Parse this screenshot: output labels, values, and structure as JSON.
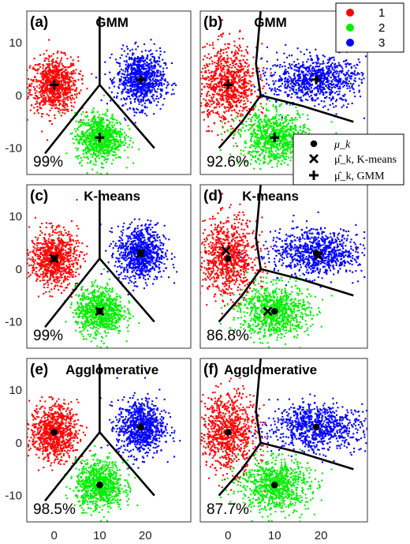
{
  "chart_data": {
    "type": "scatter",
    "xlim": [
      -6,
      30
    ],
    "ylim": [
      -15,
      16
    ],
    "xticks": [
      "0",
      "10",
      "20"
    ],
    "yticks": [
      "10",
      "0",
      "-10"
    ],
    "class_legend": [
      {
        "name": "1",
        "color": "#ff0000"
      },
      {
        "name": "2",
        "color": "#00ee00"
      },
      {
        "name": "3",
        "color": "#0000ff"
      }
    ],
    "marker_legend": [
      {
        "symbol": "●",
        "label": "μ_k"
      },
      {
        "symbol": "✖",
        "label": "μ̂_k, K-means"
      },
      {
        "symbol": "✚",
        "label": "μ̂_k, GMM"
      }
    ],
    "panels": [
      {
        "label": "(a)",
        "title": "GMM",
        "accuracy": "99%",
        "clusters": [
          {
            "cx": 0,
            "cy": 2,
            "sx": 4.2,
            "sy": 4.2
          },
          {
            "cx": 10,
            "cy": -8,
            "sx": 4.2,
            "sy": 3.6
          },
          {
            "cx": 19,
            "cy": 3,
            "sx": 4.2,
            "sy": 4.2
          }
        ],
        "true_means": [],
        "kmeans_means": [],
        "gmm_means": [
          [
            0,
            2
          ],
          [
            10,
            -8
          ],
          [
            19,
            3
          ]
        ],
        "boundaries": [
          [
            [
              10,
              15
            ],
            [
              10,
              2
            ]
          ],
          [
            [
              10,
              2
            ],
            [
              -2,
              -11
            ]
          ],
          [
            [
              10,
              2
            ],
            [
              22,
              -10
            ]
          ]
        ]
      },
      {
        "label": "(b)",
        "title": "GMM",
        "accuracy": "92.6%",
        "clusters": [
          {
            "cx": 0,
            "cy": 2,
            "sx": 5,
            "sy": 6
          },
          {
            "cx": 10,
            "cy": -8,
            "sx": 6,
            "sy": 4
          },
          {
            "cx": 19,
            "cy": 3,
            "sx": 7,
            "sy": 3.5
          }
        ],
        "true_means": [],
        "kmeans_means": [],
        "gmm_means": [
          [
            0,
            2
          ],
          [
            10,
            -8
          ],
          [
            19,
            3
          ]
        ],
        "boundaries": [
          [
            [
              7,
              16
            ],
            [
              6,
              6
            ],
            [
              7,
              0
            ]
          ],
          [
            [
              7,
              0
            ],
            [
              3,
              -5
            ],
            [
              -2,
              -10
            ]
          ],
          [
            [
              7,
              0
            ],
            [
              16,
              -2
            ],
            [
              27,
              -5
            ]
          ]
        ]
      },
      {
        "label": "(c)",
        "title": "K-means",
        "accuracy": "99%",
        "clusters": [
          {
            "cx": 0,
            "cy": 2,
            "sx": 4.2,
            "sy": 4.2
          },
          {
            "cx": 10,
            "cy": -8,
            "sx": 4.2,
            "sy": 3.6
          },
          {
            "cx": 19,
            "cy": 3,
            "sx": 4.2,
            "sy": 4.2
          }
        ],
        "true_means": [
          [
            0,
            2
          ],
          [
            10,
            -8
          ],
          [
            19,
            3
          ]
        ],
        "kmeans_means": [
          [
            0,
            2
          ],
          [
            10,
            -8
          ],
          [
            19,
            3
          ]
        ],
        "gmm_means": [],
        "boundaries": [
          [
            [
              10,
              15
            ],
            [
              10,
              2
            ]
          ],
          [
            [
              10,
              2
            ],
            [
              -2,
              -11
            ]
          ],
          [
            [
              10,
              2
            ],
            [
              22,
              -10
            ]
          ]
        ]
      },
      {
        "label": "(d)",
        "title": "K-means",
        "accuracy": "86.8%",
        "clusters": [
          {
            "cx": 0,
            "cy": 2,
            "sx": 5,
            "sy": 6
          },
          {
            "cx": 10,
            "cy": -8,
            "sx": 6,
            "sy": 4
          },
          {
            "cx": 19,
            "cy": 3,
            "sx": 7,
            "sy": 3.5
          }
        ],
        "true_means": [
          [
            0,
            2
          ],
          [
            10,
            -8
          ],
          [
            19,
            3
          ]
        ],
        "kmeans_means": [
          [
            -0.5,
            3.5
          ],
          [
            8.5,
            -8
          ],
          [
            19.5,
            2.5
          ]
        ],
        "gmm_means": [],
        "boundaries": [
          [
            [
              7,
              16
            ],
            [
              6,
              6
            ],
            [
              7,
              0
            ]
          ],
          [
            [
              7,
              0
            ],
            [
              3,
              -5
            ],
            [
              -2,
              -10
            ]
          ],
          [
            [
              7,
              0
            ],
            [
              16,
              -2
            ],
            [
              27,
              -5
            ]
          ]
        ]
      },
      {
        "label": "(e)",
        "title": "Agglomerative",
        "accuracy": "98.5%",
        "clusters": [
          {
            "cx": 0,
            "cy": 2,
            "sx": 4.2,
            "sy": 4.2
          },
          {
            "cx": 10,
            "cy": -8,
            "sx": 4.2,
            "sy": 3.6
          },
          {
            "cx": 19,
            "cy": 3,
            "sx": 4.2,
            "sy": 4.2
          }
        ],
        "true_means": [
          [
            0,
            2
          ],
          [
            10,
            -8
          ],
          [
            19,
            3
          ]
        ],
        "kmeans_means": [],
        "gmm_means": [],
        "boundaries": [
          [
            [
              10,
              15
            ],
            [
              10,
              2
            ]
          ],
          [
            [
              10,
              2
            ],
            [
              -2,
              -11
            ]
          ],
          [
            [
              10,
              2
            ],
            [
              22,
              -10
            ]
          ]
        ]
      },
      {
        "label": "(f)",
        "title": "Agglomerative",
        "accuracy": "87.7%",
        "clusters": [
          {
            "cx": 0,
            "cy": 2,
            "sx": 5,
            "sy": 6
          },
          {
            "cx": 10,
            "cy": -8,
            "sx": 6,
            "sy": 4
          },
          {
            "cx": 19,
            "cy": 3,
            "sx": 7,
            "sy": 3.5
          }
        ],
        "true_means": [
          [
            0,
            2
          ],
          [
            10,
            -8
          ],
          [
            19,
            3
          ]
        ],
        "kmeans_means": [],
        "gmm_means": [],
        "boundaries": [
          [
            [
              7,
              16
            ],
            [
              6,
              6
            ],
            [
              7,
              0
            ]
          ],
          [
            [
              7,
              0
            ],
            [
              3,
              -5
            ],
            [
              -2,
              -10
            ]
          ],
          [
            [
              7,
              0
            ],
            [
              16,
              -2
            ],
            [
              27,
              -5
            ]
          ]
        ]
      }
    ]
  }
}
